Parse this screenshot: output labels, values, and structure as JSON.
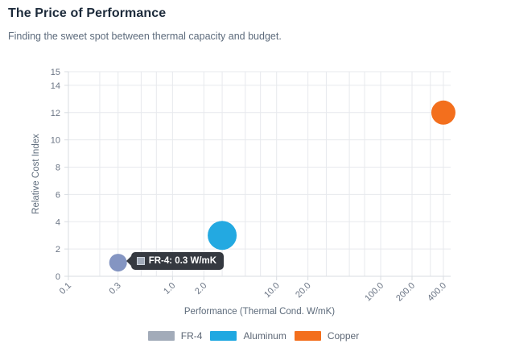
{
  "header": {
    "title": "The Price of Performance",
    "subtitle": "Finding the sweet spot between thermal capacity and budget."
  },
  "tooltip": {
    "series": "FR-4",
    "text": "FR-4: 0.3 W/mK"
  },
  "chart_data": {
    "type": "scatter",
    "subtype": "bubble",
    "title": "The Price of Performance",
    "xlabel": "Performance (Thermal Cond. W/mK)",
    "ylabel": "Relative Cost Index",
    "x_scale": "log",
    "x_range": [
      0.1,
      470
    ],
    "ylim": [
      0,
      15
    ],
    "y_ticks": [
      0,
      2,
      4,
      6,
      8,
      10,
      12,
      14,
      15
    ],
    "x_ticks": [
      0.1,
      0.3,
      1,
      2,
      10,
      20,
      100,
      200,
      400
    ],
    "x_tick_labels": [
      "0.1",
      "0.3",
      "1.0",
      "2.0",
      "10.0",
      "20.0",
      "100.0",
      "200.0",
      "400.0"
    ],
    "grid": true,
    "grid_x_values": [
      0.1,
      0.2,
      0.3,
      0.5,
      0.7,
      1,
      2,
      3,
      5,
      7,
      10,
      20,
      30,
      50,
      70,
      100,
      200,
      300,
      400
    ],
    "legend_position": "bottom",
    "series": [
      {
        "name": "FR-4",
        "color": "#a2abb9",
        "point_color": "#8495c2",
        "points": [
          {
            "x": 0.3,
            "y": 1,
            "r": 11
          }
        ]
      },
      {
        "name": "Aluminum",
        "color": "#1fa8e1",
        "point_color": "#23a9e1",
        "points": [
          {
            "x": 3,
            "y": 3,
            "r": 18
          }
        ]
      },
      {
        "name": "Copper",
        "color": "#f36f1d",
        "point_color": "#f36f1d",
        "points": [
          {
            "x": 400,
            "y": 12,
            "r": 15
          }
        ]
      }
    ]
  }
}
